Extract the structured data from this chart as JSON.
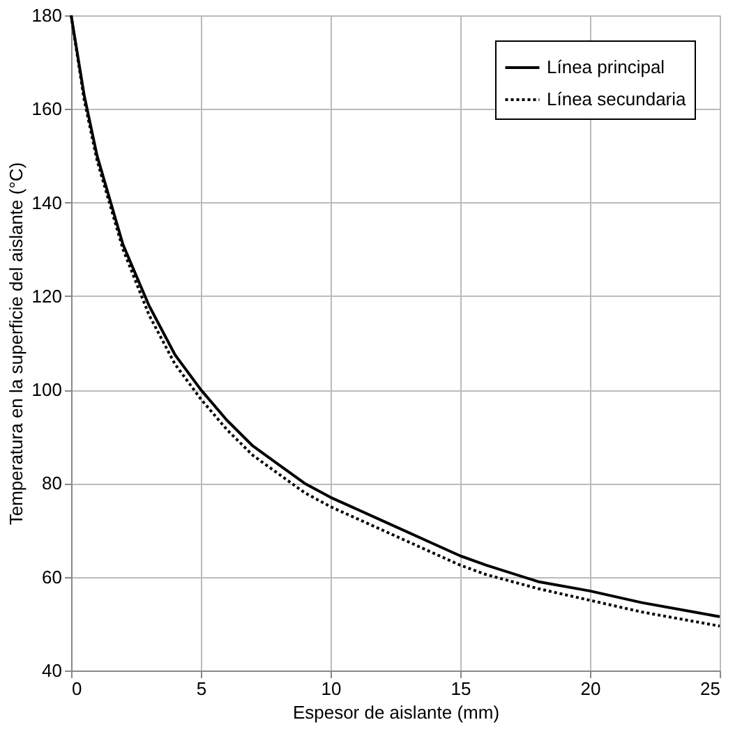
{
  "chart_data": {
    "type": "line",
    "xlabel": "Espesor de aislante (mm)",
    "ylabel": "Temperatura en la superficie del aislante (°C)",
    "x": [
      0,
      0.5,
      1,
      2,
      3,
      4,
      5,
      6,
      7,
      8,
      9,
      10,
      12,
      14,
      15,
      16,
      18,
      20,
      22,
      24,
      25
    ],
    "series": [
      {
        "name": "Línea principal",
        "color": "#000000",
        "line_style": "solid",
        "values": [
          180,
          163,
          150,
          131,
          118,
          107.5,
          100,
          93.5,
          88,
          84,
          80,
          77,
          72,
          67,
          64.5,
          62.5,
          59,
          57,
          54.5,
          52.5,
          51.5
        ]
      },
      {
        "name": "Línea secundaria",
        "color": "#000000",
        "line_style": "dotted",
        "values": [
          180,
          162,
          149,
          130,
          116,
          105.5,
          98,
          91.5,
          86,
          82,
          78,
          75,
          70,
          65,
          62.5,
          60.5,
          57.5,
          55,
          52.5,
          50.5,
          49.5
        ]
      }
    ],
    "xlim": [
      0,
      25
    ],
    "xticks": [
      0,
      5,
      10,
      15,
      20,
      25
    ],
    "ylim": [
      40,
      180
    ],
    "yticks": [
      40,
      60,
      80,
      100,
      120,
      140,
      160,
      180
    ],
    "grid": true,
    "legend": "top right",
    "marker": "none"
  }
}
